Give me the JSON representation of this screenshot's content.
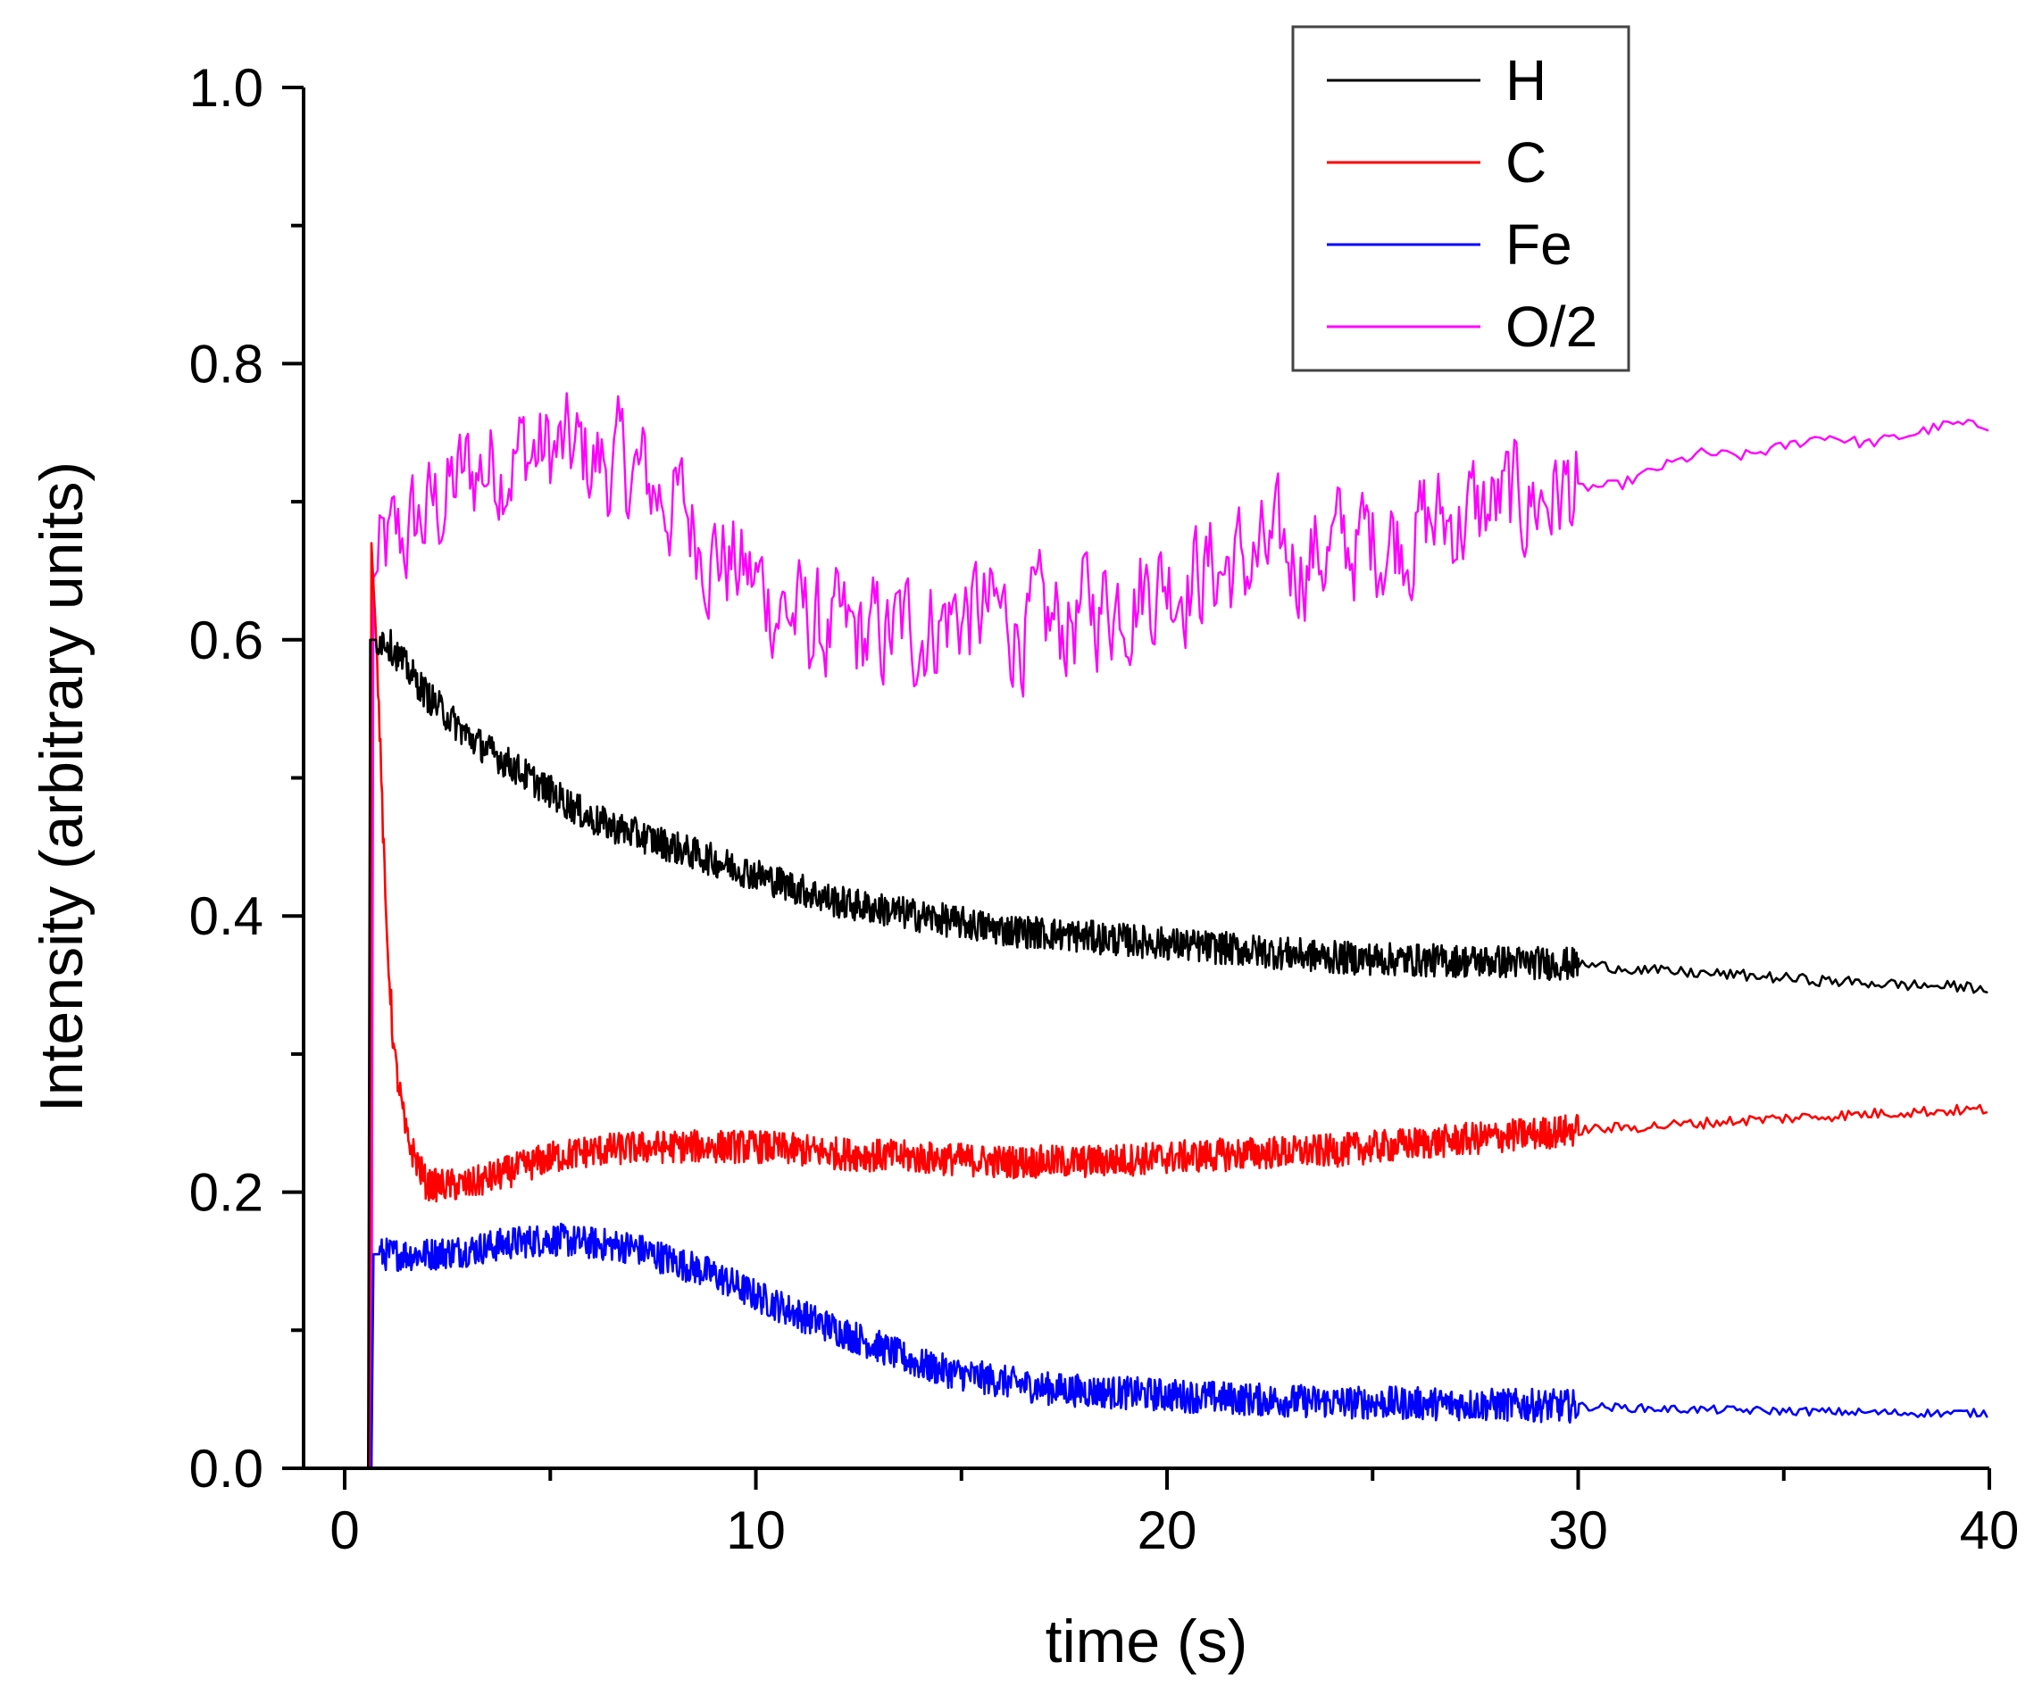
{
  "chart_data": {
    "type": "line",
    "title": "",
    "xlabel": "time (s)",
    "ylabel": "Intensity (arbitrary units)",
    "xlim": [
      -1,
      40
    ],
    "ylim": [
      0.0,
      1.0
    ],
    "x_ticks": [
      0,
      10,
      20,
      30,
      40
    ],
    "x_tick_labels": [
      "0",
      "10",
      "20",
      "30",
      "40"
    ],
    "y_ticks": [
      0.0,
      0.2,
      0.4,
      0.6,
      0.8,
      1.0
    ],
    "y_tick_labels": [
      "0.0",
      "0.2",
      "0.4",
      "0.6",
      "0.8",
      "1.0"
    ],
    "grid": false,
    "legend_position": "top-right",
    "series": [
      {
        "name": "H",
        "color": "#000000",
        "points": [
          [
            0,
            0.0
          ],
          [
            0.55,
            0.0
          ],
          [
            0.62,
            0.6
          ],
          [
            0.8,
            0.6
          ],
          [
            1,
            0.6
          ],
          [
            2,
            0.56
          ],
          [
            3,
            0.53
          ],
          [
            4,
            0.51
          ],
          [
            5,
            0.49
          ],
          [
            6,
            0.47
          ],
          [
            7,
            0.46
          ],
          [
            8,
            0.45
          ],
          [
            9,
            0.44
          ],
          [
            10,
            0.43
          ],
          [
            11,
            0.42
          ],
          [
            12,
            0.41
          ],
          [
            14,
            0.4
          ],
          [
            16,
            0.39
          ],
          [
            18,
            0.385
          ],
          [
            20,
            0.38
          ],
          [
            22,
            0.375
          ],
          [
            24,
            0.37
          ],
          [
            26,
            0.368
          ],
          [
            28,
            0.367
          ],
          [
            30,
            0.365
          ],
          [
            32,
            0.36
          ],
          [
            34,
            0.357
          ],
          [
            36,
            0.353
          ],
          [
            38,
            0.35
          ],
          [
            40,
            0.348
          ]
        ]
      },
      {
        "name": "C",
        "color": "#ff0000",
        "points": [
          [
            0,
            0.0
          ],
          [
            0.55,
            0.0
          ],
          [
            0.65,
            0.67
          ],
          [
            0.8,
            0.58
          ],
          [
            1.0,
            0.4
          ],
          [
            1.2,
            0.3
          ],
          [
            1.5,
            0.24
          ],
          [
            2,
            0.205
          ],
          [
            3,
            0.205
          ],
          [
            4,
            0.215
          ],
          [
            5,
            0.225
          ],
          [
            6,
            0.23
          ],
          [
            7,
            0.232
          ],
          [
            8,
            0.233
          ],
          [
            10,
            0.233
          ],
          [
            12,
            0.228
          ],
          [
            14,
            0.225
          ],
          [
            16,
            0.222
          ],
          [
            18,
            0.222
          ],
          [
            20,
            0.225
          ],
          [
            22,
            0.228
          ],
          [
            24,
            0.23
          ],
          [
            26,
            0.235
          ],
          [
            28,
            0.24
          ],
          [
            30,
            0.245
          ],
          [
            32,
            0.248
          ],
          [
            34,
            0.252
          ],
          [
            36,
            0.255
          ],
          [
            38,
            0.258
          ],
          [
            40,
            0.26
          ]
        ]
      },
      {
        "name": "Fe",
        "color": "#0000ff",
        "points": [
          [
            0,
            0.0
          ],
          [
            0.6,
            0.0
          ],
          [
            0.7,
            0.155
          ],
          [
            1,
            0.155
          ],
          [
            2,
            0.155
          ],
          [
            3,
            0.158
          ],
          [
            4,
            0.163
          ],
          [
            5,
            0.166
          ],
          [
            6,
            0.163
          ],
          [
            7,
            0.16
          ],
          [
            8,
            0.15
          ],
          [
            9,
            0.14
          ],
          [
            10,
            0.125
          ],
          [
            11,
            0.112
          ],
          [
            12,
            0.1
          ],
          [
            13,
            0.088
          ],
          [
            14,
            0.075
          ],
          [
            15,
            0.068
          ],
          [
            16,
            0.063
          ],
          [
            17,
            0.058
          ],
          [
            18,
            0.056
          ],
          [
            20,
            0.053
          ],
          [
            22,
            0.05
          ],
          [
            24,
            0.048
          ],
          [
            26,
            0.047
          ],
          [
            28,
            0.046
          ],
          [
            30,
            0.045
          ],
          [
            32,
            0.043
          ],
          [
            34,
            0.042
          ],
          [
            36,
            0.041
          ],
          [
            38,
            0.04
          ],
          [
            40,
            0.04
          ]
        ]
      },
      {
        "name": "O/2",
        "color": "#ff00ff",
        "points": [
          [
            0,
            0.0
          ],
          [
            0.55,
            0.0
          ],
          [
            0.7,
            0.645
          ],
          [
            1,
            0.66
          ],
          [
            2,
            0.69
          ],
          [
            3,
            0.72
          ],
          [
            4,
            0.735
          ],
          [
            5,
            0.735
          ],
          [
            6,
            0.73
          ],
          [
            7,
            0.72
          ],
          [
            8,
            0.7
          ],
          [
            9,
            0.665
          ],
          [
            10,
            0.64
          ],
          [
            11,
            0.615
          ],
          [
            12,
            0.6
          ],
          [
            13,
            0.6
          ],
          [
            14,
            0.61
          ],
          [
            15,
            0.62
          ],
          [
            16,
            0.615
          ],
          [
            17,
            0.605
          ],
          [
            18,
            0.62
          ],
          [
            19,
            0.635
          ],
          [
            20,
            0.645
          ],
          [
            22,
            0.655
          ],
          [
            24,
            0.665
          ],
          [
            26,
            0.68
          ],
          [
            28,
            0.695
          ],
          [
            30,
            0.71
          ],
          [
            31,
            0.712
          ],
          [
            32,
            0.725
          ],
          [
            33,
            0.735
          ],
          [
            34,
            0.733
          ],
          [
            35,
            0.74
          ],
          [
            36,
            0.748
          ],
          [
            37,
            0.742
          ],
          [
            38,
            0.748
          ],
          [
            39,
            0.756
          ],
          [
            40,
            0.755
          ]
        ]
      }
    ]
  }
}
